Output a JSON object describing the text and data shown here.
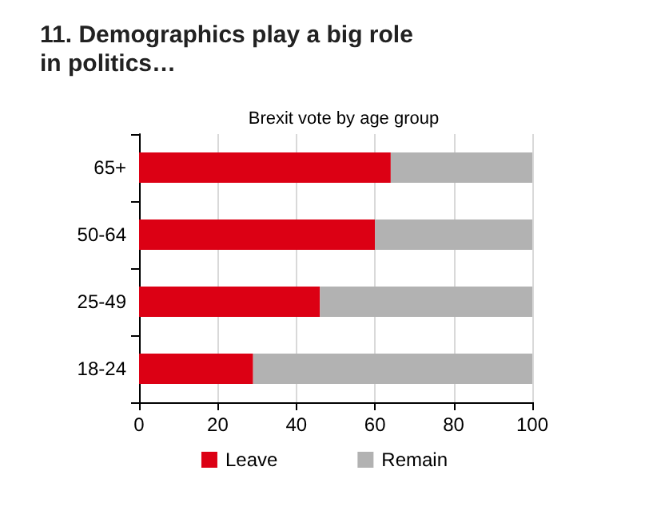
{
  "chart_data": {
    "type": "bar",
    "orientation": "horizontal",
    "stacked": true,
    "title": "11. Demographics play a big role in politics…",
    "subtitle": "Brexit vote by age group",
    "categories": [
      "65+",
      "50-64",
      "25-49",
      "18-24"
    ],
    "series": [
      {
        "name": "Leave",
        "color": "#dc0014",
        "values": [
          64,
          60,
          46,
          29
        ]
      },
      {
        "name": "Remain",
        "color": "#b2b2b2",
        "values": [
          36,
          40,
          54,
          71
        ]
      }
    ],
    "xlim": [
      0,
      100
    ],
    "xticks": [
      0,
      20,
      40,
      60,
      80,
      100
    ],
    "grid": "x",
    "legend": "bottom"
  }
}
